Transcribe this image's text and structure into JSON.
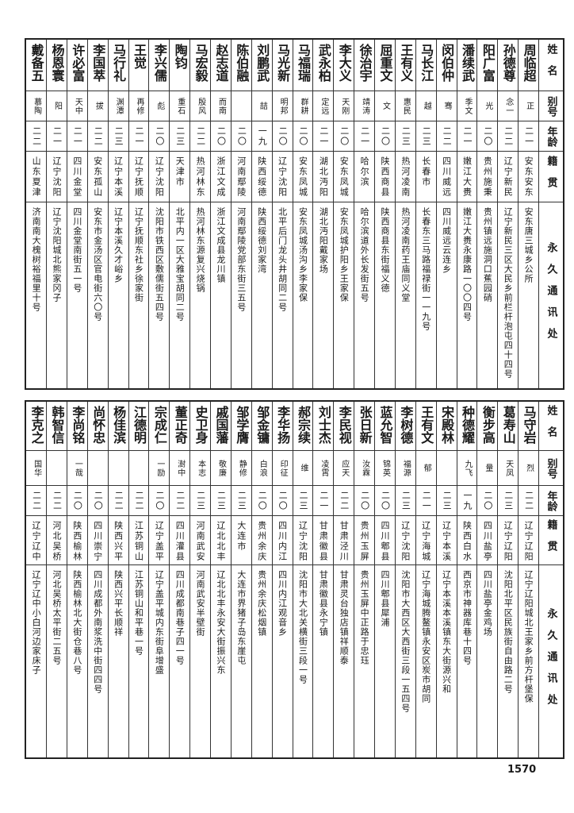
{
  "headers": {
    "name": "姓名",
    "alias": "别号",
    "age": "年龄",
    "origin": "籍贯",
    "address": "永久通讯处"
  },
  "top_table": {
    "people": [
      {
        "name": "周临超",
        "alias": "正",
        "age": "二一",
        "origin": "安东安东",
        "address": "安东唐三城乡公所"
      },
      {
        "name": "孙德尊",
        "alias": "念一",
        "age": "二二",
        "origin": "辽宁新民",
        "address": "辽宁新民三区大民乡前栏杆泡屯四十四号"
      },
      {
        "name": "阳广富",
        "alias": "光",
        "age": "二〇",
        "origin": "贵州施秉",
        "address": "贵州镇远施洞口蕉园硝"
      },
      {
        "name": "潘续武",
        "alias": "季文",
        "age": "二一",
        "origin": "嫩江大赉",
        "address": "嫩江大赉永康路一〇〇四号"
      },
      {
        "name": "闵伯仲",
        "alias": "骞",
        "age": "二二",
        "origin": "四川威远",
        "address": "四川威远云连乡"
      },
      {
        "name": "马长江",
        "alias": "越",
        "age": "二三",
        "origin": "长春市",
        "address": "长春东三马路福禄街一一九号"
      },
      {
        "name": "王有义",
        "alias": "惠民",
        "age": "二三",
        "origin": "热河凌南",
        "address": "热河凌南药王庙同义堂"
      },
      {
        "name": "屈重文",
        "alias": "文",
        "age": "二〇",
        "origin": "陕西商县",
        "address": "陕西商县东街福义德"
      },
      {
        "name": "徐治宇",
        "alias": "靖涛",
        "age": "二一",
        "origin": "哈尔滨",
        "address": "哈尔滨道外长发街五号"
      },
      {
        "name": "李大义",
        "alias": "天刚",
        "age": "二〇",
        "origin": "安东凤城",
        "address": "安东凤城护阳乡王家保"
      },
      {
        "name": "武永柏",
        "alias": "定远",
        "age": "二一",
        "origin": "湖北沔阳",
        "address": "湖北沔阳戴家场"
      },
      {
        "name": "马福瑞",
        "alias": "群耕",
        "age": "二〇",
        "origin": "安东凤城",
        "address": "安东凤城汤沟乡李家保"
      },
      {
        "name": "马光新",
        "alias": "明邦",
        "age": "二〇",
        "origin": "辽宁沈阳",
        "address": "北平后门龙头井胡同二号"
      },
      {
        "name": "刘鹏武",
        "alias": "喆",
        "age": "一九",
        "origin": "陕西绥德",
        "address": "陕西绥德刘家湾"
      },
      {
        "name": "陈伯融",
        "alias": "",
        "age": "二〇",
        "origin": "河南鄢陵",
        "address": "河南鄢陵党部东街三五号"
      },
      {
        "name": "赵志道",
        "alias": "而南",
        "age": "二〇",
        "origin": "浙江文成",
        "address": "浙江文成县龙川镇"
      },
      {
        "name": "马宏毅",
        "alias": "殷风",
        "age": "二二",
        "origin": "热河林东",
        "address": "热河林东源复兴烧锅"
      },
      {
        "name": "陶钧",
        "alias": "重石",
        "age": "二三",
        "origin": "天津市",
        "address": "北平内一区大雅宝胡同二号"
      },
      {
        "name": "李兴儒",
        "alias": "彪",
        "age": "二〇",
        "origin": "辽宁沈阳",
        "address": "沈阳市铁西区敷儒街五四号"
      },
      {
        "name": "王觉",
        "alias": "再修",
        "age": "二一",
        "origin": "辽宁抚顺",
        "address": "辽宁抚顺东社乡徐家街"
      },
      {
        "name": "马行礼",
        "alias": "渊潭",
        "age": "二三",
        "origin": "辽宁本溪",
        "address": "辽宁本溪久才峪乡"
      },
      {
        "name": "李国萃",
        "alias": "拔",
        "age": "二二",
        "origin": "安东孤山",
        "address": "安东市金汤区官电街六〇号"
      },
      {
        "name": "许必富",
        "alias": "天中",
        "age": "二一",
        "origin": "四川金堂",
        "address": "四川金堂南街五一号"
      },
      {
        "name": "杨恩寰",
        "alias": "阳",
        "age": "二一",
        "origin": "辽宁沈阳",
        "address": "辽宁沈阳城北熊家冈子"
      },
      {
        "name": "戴备五",
        "alias": "慕陶",
        "age": "二二",
        "origin": "山东夏津",
        "address": "济南南大槐树裕福里十号"
      }
    ]
  },
  "bottom_table": {
    "people": [
      {
        "name": "马守岩",
        "alias": "烈",
        "age": "二二",
        "origin": "辽宁辽阳",
        "address": "辽宁辽阳城北王家乡前方杆堡保"
      },
      {
        "name": "葛寿山",
        "alias": "天凤",
        "age": "二三",
        "origin": "辽宁辽阳",
        "address": "沈阳北平区民族街自由路二号"
      },
      {
        "name": "衡步高",
        "alias": "量",
        "age": "二〇",
        "origin": "四川盐亭",
        "address": "四川盐亭金鸡场"
      },
      {
        "name": "种德耀",
        "alias": "九飞",
        "age": "一九",
        "origin": "陕西白水",
        "address": "西京市神器库巷十四号"
      },
      {
        "name": "宋殿林",
        "alias": "",
        "age": "二三",
        "origin": "辽宁本溪",
        "address": "辽宁本溪本溪镇东大街源兴和"
      },
      {
        "name": "王有文",
        "alias": "郁",
        "age": "二一",
        "origin": "辽宁海城",
        "address": "辽宁海城腾鳌镇永安区炭市胡同"
      },
      {
        "name": "李树德",
        "alias": "福源",
        "age": "二三",
        "origin": "辽宁沈阳",
        "address": "沈阳市大西区大西街三段一五四号"
      },
      {
        "name": "蓝允智",
        "alias": "锦英",
        "age": "二〇",
        "origin": "四川郫县",
        "address": "四川郫县犀浦"
      },
      {
        "name": "张日新",
        "alias": "汝霖",
        "age": "二〇",
        "origin": "贵州玉屏",
        "address": "贵州玉屏中正路于忠珏"
      },
      {
        "name": "李民视",
        "alias": "应天",
        "age": "二二",
        "origin": "甘肃泾川",
        "address": "甘肃灵台独店镇祥顺泰"
      },
      {
        "name": "刘士杰",
        "alias": "凌霄",
        "age": "二一",
        "origin": "甘肃徽县",
        "address": "甘肃徽县永宁镇"
      },
      {
        "name": "郝宗续",
        "alias": "维",
        "age": "二三",
        "origin": "辽宁沈阳",
        "address": "沈阳市大北关横街三段一号"
      },
      {
        "name": "李华扬",
        "alias": "印征",
        "age": "二〇",
        "origin": "四川内江",
        "address": "四川内江观音乡"
      },
      {
        "name": "邹金镛",
        "alias": "白浪",
        "age": "二〇",
        "origin": "贵州余庆",
        "address": "贵州余庆松烟镇"
      },
      {
        "name": "邹学膺",
        "alias": "静修",
        "age": "二三",
        "origin": "大连市",
        "address": "大连市界猪子岛东崖屯"
      },
      {
        "name": "戚国藩",
        "alias": "敬廉",
        "age": "二三",
        "origin": "辽北北丰",
        "address": "辽北北丰永安大街振兴东"
      },
      {
        "name": "史卫身",
        "alias": "本志",
        "age": "二三",
        "origin": "河南武安",
        "address": "河南武安半壁街"
      },
      {
        "name": "董正奇",
        "alias": "澍中",
        "age": "二二",
        "origin": "四川灌县",
        "address": "四川成都南巷子四一号"
      },
      {
        "name": "宗成仁",
        "alias": "一励",
        "age": "二〇",
        "origin": "辽宁盖平",
        "address": "辽宁盖平城内东街阜增盛"
      },
      {
        "name": "江德明",
        "alias": "",
        "age": "二二",
        "origin": "江苏铜山",
        "address": "江苏铜山和平巷一号"
      },
      {
        "name": "杨佳滨",
        "alias": "",
        "age": "二二",
        "origin": "陕西兴平",
        "address": "陕西兴平长顺祥"
      },
      {
        "name": "尚怀忠",
        "alias": "",
        "age": "二〇",
        "origin": "四川崇宁",
        "address": "四川成都外南浆洗中街四四号"
      },
      {
        "name": "李尚铭",
        "alias": "一哉",
        "age": "二〇",
        "origin": "陕西榆林",
        "address": "陕西榆林北大街仓巷八号"
      },
      {
        "name": "韩智信",
        "alias": "",
        "age": "二二",
        "origin": "河北吴桥",
        "address": "河北吴桥太平街二五号"
      },
      {
        "name": "李克之",
        "alias": "国华",
        "age": "二二",
        "origin": "辽宁辽中",
        "address": "辽宁辽中小白河边家床子"
      }
    ]
  },
  "page_number": "1570"
}
